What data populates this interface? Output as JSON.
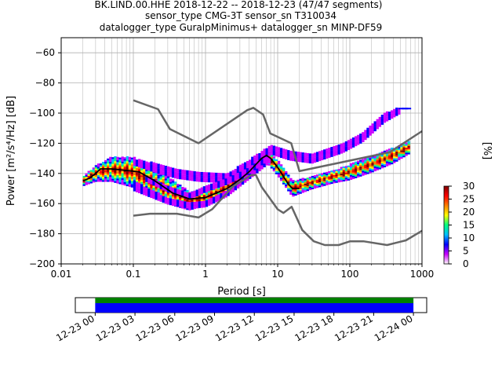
{
  "title_lines": [
    "BK.LIND.00.HHE   2018-12-22 -- 2018-12-23  (47/47 segments)",
    "sensor_type CMG-3T sensor_sn T310034",
    "datalogger_type GuralpMinimus+ datalogger_sn MINP-DF59"
  ],
  "chart_data": [
    {
      "type": "heatmap",
      "xlabel": "Period [s]",
      "ylabel": "Power [m²/s⁴/Hz] [dB]",
      "xscale": "log",
      "xlim": [
        0.01,
        1000
      ],
      "ylim": [
        -200,
        -50
      ],
      "x_ticks": [
        0.01,
        0.1,
        1,
        10,
        100,
        1000
      ],
      "x_tick_labels": [
        "0.01",
        "0.1",
        "1",
        "10",
        "100",
        "1000"
      ],
      "y_ticks": [
        -200,
        -180,
        -160,
        -140,
        -120,
        -100,
        -80,
        -60
      ],
      "grid": true,
      "colorbar": {
        "label": "[%]",
        "range": [
          0,
          30
        ],
        "ticks": [
          0,
          5,
          10,
          15,
          20,
          25,
          30
        ],
        "colors": [
          "#ffffff",
          "#cc00ff",
          "#0000ff",
          "#00bfff",
          "#00ff80",
          "#ffff00",
          "#ff8000",
          "#ff0000",
          "#800000"
        ]
      },
      "noise_model_high": {
        "period": [
          0.1,
          0.22,
          0.32,
          0.8,
          3.8,
          4.6,
          6.3,
          7.9,
          15.4,
          20,
          354.8,
          1000
        ],
        "power": [
          -91.5,
          -97.4,
          -110.5,
          -120,
          -98,
          -96.5,
          -101,
          -113.5,
          -120,
          -138.5,
          -126,
          -112
        ]
      },
      "noise_model_low": {
        "period": [
          0.1,
          0.17,
          0.4,
          0.8,
          1.24,
          2.4,
          4.3,
          5,
          6,
          10,
          12,
          15.6,
          21.9,
          31.6,
          45,
          70,
          101,
          154,
          328,
          600,
          1000
        ],
        "power": [
          -168,
          -166.7,
          -166.7,
          -169.2,
          -163.7,
          -148.6,
          -141.1,
          -141.1,
          -149,
          -163.8,
          -166.2,
          -162.1,
          -177.5,
          -185,
          -187.5,
          -187.5,
          -185,
          -185,
          -187.5,
          -184.4,
          -178
        ]
      },
      "mode_curve": {
        "period": [
          0.02,
          0.025,
          0.03,
          0.035,
          0.05,
          0.08,
          0.12,
          0.2,
          0.35,
          0.6,
          1,
          2,
          3,
          4,
          5,
          6,
          7,
          8,
          10,
          12,
          14,
          16,
          20
        ],
        "power": [
          -145,
          -143,
          -140,
          -137,
          -137,
          -138,
          -139,
          -145,
          -153,
          -157,
          -156,
          -150,
          -144,
          -139,
          -134,
          -130,
          -128,
          -130,
          -136,
          -142,
          -147,
          -150,
          -150
        ]
      },
      "pdf_bands": [
        {
          "name": "main",
          "period": [
            0.02,
            0.03,
            0.05,
            0.1,
            0.3,
            0.6,
            1,
            2,
            4,
            7,
            10,
            16,
            30,
            60,
            100,
            200,
            400,
            700
          ],
          "power": [
            -145,
            -140,
            -137,
            -139,
            -151,
            -158,
            -156,
            -149,
            -138,
            -128,
            -136,
            -150,
            -146,
            -142,
            -139,
            -134,
            -128,
            -122
          ],
          "spread": [
            3,
            5,
            8,
            10,
            9,
            6,
            5,
            5,
            5,
            4,
            5,
            5,
            4,
            4,
            5,
            5,
            5,
            4
          ]
        },
        {
          "name": "upper-sparse",
          "period": [
            0.1,
            0.2,
            0.4,
            0.8,
            2,
            5,
            8,
            15,
            30,
            80,
            150,
            300,
            500
          ],
          "power": [
            -132,
            -136,
            -140,
            -142,
            -143,
            -132,
            -124,
            -128,
            -130,
            -123,
            -116,
            -103,
            -98
          ],
          "spread": [
            2,
            3,
            3,
            3,
            3,
            4,
            3,
            3,
            3,
            3,
            3,
            3,
            2
          ]
        },
        {
          "name": "lower-sparse",
          "period": [
            0.1,
            0.3,
            0.6,
            1,
            2,
            5,
            8
          ],
          "power": [
            -148,
            -158,
            -161,
            -160,
            -153,
            -137,
            -130
          ],
          "spread": [
            3,
            2,
            2,
            2,
            2,
            3,
            2
          ]
        },
        {
          "name": "hf-mid",
          "period": [
            0.15,
            0.3,
            0.6,
            1,
            2,
            4,
            7
          ],
          "power": [
            -143,
            -150,
            -155,
            -150,
            -145,
            -138,
            -130
          ],
          "spread": [
            2,
            2,
            2,
            2,
            2,
            2,
            2
          ]
        }
      ],
      "dash_marks": [
        {
          "period": 520,
          "power": -97
        },
        {
          "period": 580,
          "power": -97
        },
        {
          "period": 640,
          "power": -97
        }
      ]
    },
    {
      "type": "timeline",
      "tick_labels": [
        "12-23 00",
        "12-23 03",
        "12-23 06",
        "12-23 09",
        "12-23 12",
        "12-23 15",
        "12-23 18",
        "12-23 21",
        "12-24 00"
      ],
      "xlim_hours": [
        -1.5,
        25
      ],
      "coverage_hours": [
        0,
        24
      ],
      "data_coverage_color": "#008000",
      "pdf_coverage_color": "#0000ff"
    }
  ]
}
